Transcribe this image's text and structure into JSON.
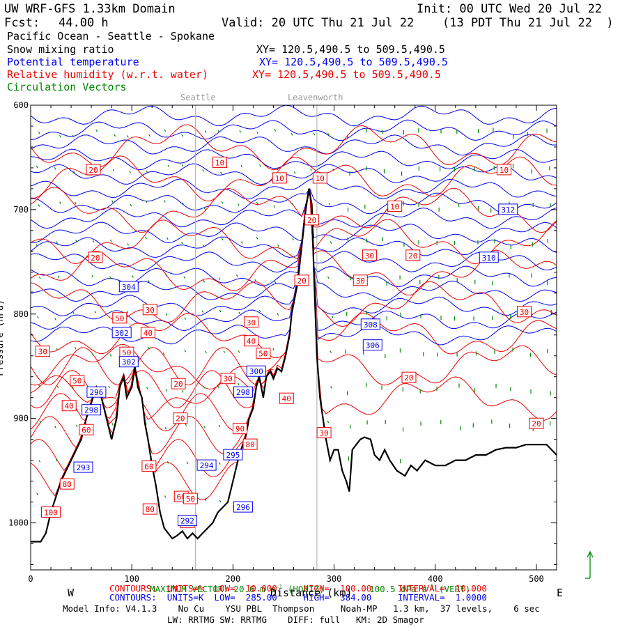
{
  "header": {
    "domain": "UW WRF-GFS 1.33km Domain",
    "init": "Init: 00 UTC Wed 20 Jul 22",
    "fcst_label": "Fcst:",
    "fcst_value": "44.00 h",
    "valid": "Valid: 20 UTC Thu 21 Jul 22",
    "valid_local": "(13 PDT Thu 21 Jul 22  )",
    "region": "Pacific Ocean - Seattle - Spokane",
    "field_black": "Snow mixing ratio",
    "field_blue": "Potential temperature",
    "field_red": "Relative humidity (w.r.t. water)",
    "field_green": "Circulation Vectors",
    "xy_black": "XY= 120.5,490.5 to 509.5,490.5",
    "xy_blue": "XY= 120.5,490.5 to 509.5,490.5",
    "xy_red": "XY= 120.5,490.5 to 509.5,490.5"
  },
  "places": [
    "Seattle",
    "Leavenworth"
  ],
  "colors": {
    "temperature": "#0000ee",
    "humidity": "#ee0000",
    "vectors": "#008800",
    "terrain": "#000000",
    "marker": "#aaaaaa"
  },
  "axes": {
    "ylabel": "Pressure (hPa)",
    "xlabel": "Distance (km)",
    "west": "W",
    "east": "E",
    "x_ticks": [
      "0",
      "100",
      "200",
      "300",
      "400",
      "500"
    ],
    "y_ticks": [
      "600",
      "700",
      "800",
      "900",
      "1000"
    ]
  },
  "footer": {
    "max_vector": "MAXIMUM VECTOR: 20.6 m s",
    "max_vector_exp": "-1",
    "max_vector_horiz": "(HORIZ)",
    "max_vector_vert": "100.5 dPa s",
    "max_vector_vert_exp": "-1",
    "max_vector_vert_tail": "(VERT)",
    "red_contours": "CONTOURS:  UNITS=%  LOW=  10.000     HIGH=  100.00     INTERVAL=  10.000",
    "blue_contours": "CONTOURS:  UNITS=K  LOW=  285.00     HIGH=  384.00     INTERVAL=  1.0000",
    "model_info": "Model Info: V4.1.3    No Cu    YSU PBL  Thompson     Noah-MP   1.3 km,  37 levels,    6 sec",
    "model_info2": "LW: RRTMG SW: RRTMG    DIFF: full   KM: 2D Smagor"
  },
  "chart_data": {
    "type": "cross-section",
    "x_range_km": [
      0,
      520
    ],
    "y_range_hpa": [
      1045,
      600
    ],
    "y_scale": "linear-pressure",
    "place_markers_km": {
      "Seattle": 163,
      "Leavenworth": 283
    },
    "terrain_km_hpa": [
      [
        0,
        1018
      ],
      [
        10,
        1018
      ],
      [
        15,
        1010
      ],
      [
        20,
        990
      ],
      [
        25,
        975
      ],
      [
        30,
        960
      ],
      [
        35,
        950
      ],
      [
        40,
        940
      ],
      [
        45,
        930
      ],
      [
        50,
        920
      ],
      [
        55,
        900
      ],
      [
        60,
        885
      ],
      [
        65,
        870
      ],
      [
        70,
        880
      ],
      [
        75,
        900
      ],
      [
        80,
        920
      ],
      [
        85,
        900
      ],
      [
        88,
        870
      ],
      [
        92,
        860
      ],
      [
        95,
        880
      ],
      [
        100,
        870
      ],
      [
        103,
        850
      ],
      [
        106,
        870
      ],
      [
        110,
        880
      ],
      [
        113,
        905
      ],
      [
        116,
        920
      ],
      [
        120,
        945
      ],
      [
        124,
        965
      ],
      [
        128,
        990
      ],
      [
        132,
        1005
      ],
      [
        136,
        1010
      ],
      [
        140,
        1015
      ],
      [
        145,
        1012
      ],
      [
        150,
        1008
      ],
      [
        155,
        1015
      ],
      [
        160,
        1010
      ],
      [
        165,
        1015
      ],
      [
        170,
        1010
      ],
      [
        175,
        1005
      ],
      [
        180,
        1000
      ],
      [
        185,
        990
      ],
      [
        190,
        985
      ],
      [
        195,
        980
      ],
      [
        200,
        960
      ],
      [
        205,
        940
      ],
      [
        208,
        930
      ],
      [
        212,
        920
      ],
      [
        216,
        900
      ],
      [
        220,
        890
      ],
      [
        223,
        870
      ],
      [
        226,
        860
      ],
      [
        230,
        880
      ],
      [
        233,
        860
      ],
      [
        237,
        855
      ],
      [
        240,
        862
      ],
      [
        244,
        852
      ],
      [
        248,
        855
      ],
      [
        252,
        840
      ],
      [
        256,
        820
      ],
      [
        258,
        800
      ],
      [
        260,
        790
      ],
      [
        264,
        770
      ],
      [
        268,
        735
      ],
      [
        272,
        700
      ],
      [
        275,
        680
      ],
      [
        278,
        695
      ],
      [
        280,
        760
      ],
      [
        283,
        840
      ],
      [
        286,
        880
      ],
      [
        289,
        900
      ],
      [
        292,
        920
      ],
      [
        296,
        940
      ],
      [
        300,
        930
      ],
      [
        304,
        930
      ],
      [
        308,
        950
      ],
      [
        312,
        960
      ],
      [
        315,
        970
      ],
      [
        318,
        930
      ],
      [
        322,
        925
      ],
      [
        326,
        920
      ],
      [
        330,
        918
      ],
      [
        336,
        920
      ],
      [
        340,
        935
      ],
      [
        345,
        940
      ],
      [
        350,
        930
      ],
      [
        355,
        940
      ],
      [
        362,
        950
      ],
      [
        370,
        955
      ],
      [
        376,
        945
      ],
      [
        382,
        950
      ],
      [
        390,
        940
      ],
      [
        400,
        945
      ],
      [
        410,
        945
      ],
      [
        420,
        940
      ],
      [
        430,
        940
      ],
      [
        440,
        935
      ],
      [
        450,
        935
      ],
      [
        460,
        930
      ],
      [
        470,
        928
      ],
      [
        480,
        928
      ],
      [
        490,
        925
      ],
      [
        500,
        925
      ],
      [
        510,
        925
      ],
      [
        520,
        935
      ]
    ],
    "potential_temperature_K": {
      "interval": 1.0,
      "low": 285,
      "high": 384,
      "labels": [
        {
          "km": 52,
          "hpa": 947,
          "value": 293
        },
        {
          "km": 60,
          "hpa": 892,
          "value": 298
        },
        {
          "km": 65,
          "hpa": 875,
          "value": 296
        },
        {
          "km": 90,
          "hpa": 818,
          "value": 302
        },
        {
          "km": 97,
          "hpa": 846,
          "value": 302
        },
        {
          "km": 97,
          "hpa": 774,
          "value": 304
        },
        {
          "km": 155,
          "hpa": 998,
          "value": 292
        },
        {
          "km": 174,
          "hpa": 945,
          "value": 294
        },
        {
          "km": 200,
          "hpa": 935,
          "value": 295
        },
        {
          "km": 210,
          "hpa": 985,
          "value": 296
        },
        {
          "km": 210,
          "hpa": 875,
          "value": 298
        },
        {
          "km": 223,
          "hpa": 855,
          "value": 300
        },
        {
          "km": 338,
          "hpa": 830,
          "value": 306
        },
        {
          "km": 336,
          "hpa": 810,
          "value": 308
        },
        {
          "km": 453,
          "hpa": 746,
          "value": 310
        },
        {
          "km": 472,
          "hpa": 700,
          "value": 312
        }
      ]
    },
    "relative_humidity_pct": {
      "interval": 10,
      "low": 10,
      "high": 100,
      "labels": [
        {
          "km": 62,
          "hpa": 662,
          "value": 20
        },
        {
          "km": 187,
          "hpa": 655,
          "value": 10
        },
        {
          "km": 246,
          "hpa": 670,
          "value": 10
        },
        {
          "km": 286,
          "hpa": 670,
          "value": 10
        },
        {
          "km": 360,
          "hpa": 697,
          "value": 10
        },
        {
          "km": 468,
          "hpa": 662,
          "value": 10
        },
        {
          "km": 278,
          "hpa": 710,
          "value": 20
        },
        {
          "km": 335,
          "hpa": 744,
          "value": 30
        },
        {
          "km": 378,
          "hpa": 744,
          "value": 20
        },
        {
          "km": 64,
          "hpa": 746,
          "value": 20
        },
        {
          "km": 326,
          "hpa": 768,
          "value": 30
        },
        {
          "km": 268,
          "hpa": 768,
          "value": 20
        },
        {
          "km": 488,
          "hpa": 798,
          "value": 30
        },
        {
          "km": 118,
          "hpa": 796,
          "value": 30
        },
        {
          "km": 88,
          "hpa": 804,
          "value": 50
        },
        {
          "km": 116,
          "hpa": 818,
          "value": 40
        },
        {
          "km": 12,
          "hpa": 836,
          "value": 30
        },
        {
          "km": 95,
          "hpa": 837,
          "value": 50
        },
        {
          "km": 218,
          "hpa": 808,
          "value": 30
        },
        {
          "km": 218,
          "hpa": 826,
          "value": 40
        },
        {
          "km": 230,
          "hpa": 838,
          "value": 50
        },
        {
          "km": 46,
          "hpa": 864,
          "value": 50
        },
        {
          "km": 38,
          "hpa": 888,
          "value": 40
        },
        {
          "km": 55,
          "hpa": 911,
          "value": 60
        },
        {
          "km": 146,
          "hpa": 867,
          "value": 20
        },
        {
          "km": 195,
          "hpa": 862,
          "value": 30
        },
        {
          "km": 148,
          "hpa": 900,
          "value": 20
        },
        {
          "km": 207,
          "hpa": 910,
          "value": 90
        },
        {
          "km": 217,
          "hpa": 925,
          "value": 80
        },
        {
          "km": 253,
          "hpa": 881,
          "value": 40
        },
        {
          "km": 374,
          "hpa": 861,
          "value": 20
        },
        {
          "km": 290,
          "hpa": 914,
          "value": 30
        },
        {
          "km": 117,
          "hpa": 946,
          "value": 60
        },
        {
          "km": 149,
          "hpa": 975,
          "value": 60
        },
        {
          "km": 158,
          "hpa": 977,
          "value": 50
        },
        {
          "km": 118,
          "hpa": 987,
          "value": 80
        },
        {
          "km": 155,
          "hpa": 1000,
          "value": 50
        },
        {
          "km": 36,
          "hpa": 963,
          "value": 80
        },
        {
          "km": 20,
          "hpa": 990,
          "value": 100
        },
        {
          "km": 500,
          "hpa": 905,
          "value": 20
        }
      ]
    },
    "circulation_vectors": {
      "max_horizontal_m_s": 20.6,
      "max_vertical_dPa_s": 100.5
    }
  }
}
